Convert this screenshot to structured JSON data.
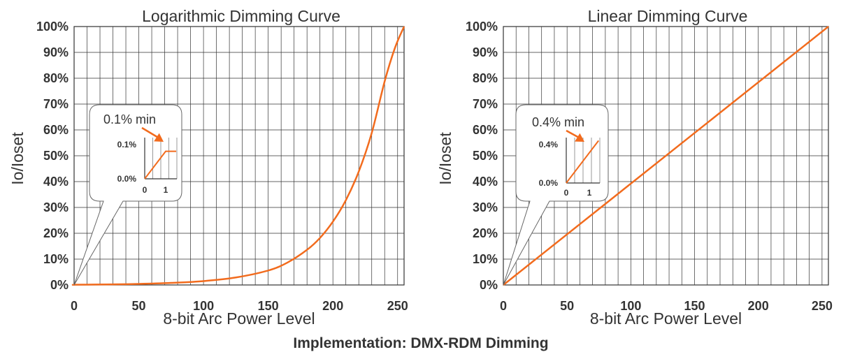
{
  "caption": "Implementation: DMX-RDM Dimming",
  "colors": {
    "curve": "#f26b1d",
    "grid": "#333333",
    "text": "#333333"
  },
  "chart_data": [
    {
      "type": "line",
      "title": "Logarithmic Dimming Curve",
      "xlabel": "8-bit Arc Power Level",
      "ylabel": "Io/Ioset",
      "xlim": [
        0,
        255
      ],
      "ylim": [
        0,
        100
      ],
      "x_ticks": [
        "0",
        "50",
        "100",
        "150",
        "200",
        "250"
      ],
      "y_ticks": [
        "0%",
        "10%",
        "20%",
        "30%",
        "40%",
        "50%",
        "60%",
        "70%",
        "80%",
        "90%",
        "100%"
      ],
      "grid": true,
      "series": [
        {
          "x": [
            0,
            1,
            25,
            50,
            75,
            100,
            125,
            150,
            165,
            180,
            190,
            200,
            210,
            220,
            230,
            240,
            248,
            255
          ],
          "y": [
            0,
            0.1,
            0.2,
            0.4,
            0.8,
            1.5,
            2.9,
            5.6,
            8.7,
            13.6,
            18.2,
            24.5,
            32.8,
            43.9,
            58.8,
            78.8,
            91.8,
            100
          ]
        }
      ],
      "annotation": {
        "text": "0.1% min",
        "inset_y_ticks": [
          "0.1%",
          "0.0%"
        ],
        "inset_x_ticks": [
          "0",
          "1"
        ],
        "inset_x": [
          0,
          1,
          1.5
        ],
        "inset_y": [
          0,
          0.1,
          0.1
        ],
        "inset_ymax": 0.15
      }
    },
    {
      "type": "line",
      "title": "Linear Dimming Curve",
      "xlabel": "8-bit Arc Power Level",
      "ylabel": "Io/Ioset",
      "xlim": [
        0,
        255
      ],
      "ylim": [
        0,
        100
      ],
      "x_ticks": [
        "0",
        "50",
        "100",
        "150",
        "200",
        "250"
      ],
      "y_ticks": [
        "0%",
        "10%",
        "20%",
        "30%",
        "40%",
        "50%",
        "60%",
        "70%",
        "80%",
        "90%",
        "100%"
      ],
      "grid": true,
      "series": [
        {
          "x": [
            0,
            255
          ],
          "y": [
            0,
            100
          ]
        }
      ],
      "annotation": {
        "text": "0.4% min",
        "inset_y_ticks": [
          "0.4%",
          "0.0%"
        ],
        "inset_x_ticks": [
          "0",
          "1"
        ],
        "inset_x": [
          0,
          1.4
        ],
        "inset_y": [
          0,
          0.56
        ],
        "inset_ymax": 0.6
      }
    }
  ]
}
